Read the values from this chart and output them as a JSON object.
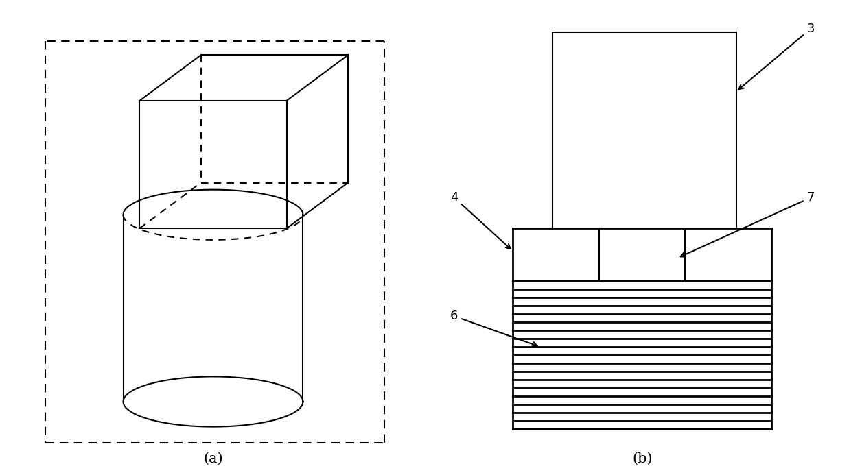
{
  "fig_width": 12.4,
  "fig_height": 6.93,
  "bg_color": "#ffffff",
  "line_color": "#000000",
  "label_a": "(a)",
  "label_b": "(b)"
}
